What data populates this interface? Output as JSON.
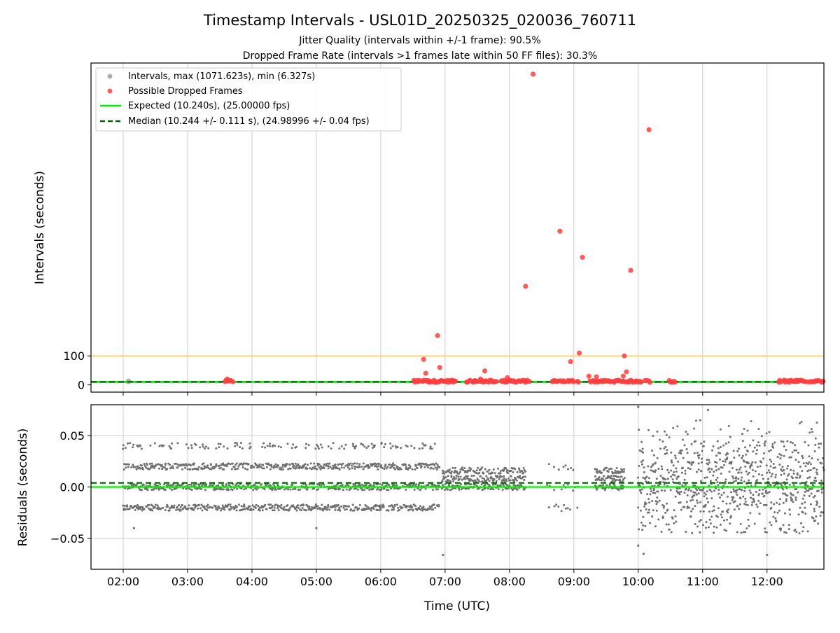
{
  "figure": {
    "title": "Timestamp Intervals - USL01D_20250325_020036_760711",
    "subtitle_1": "Jitter Quality (intervals within +/-1 frame): 90.5%",
    "subtitle_2": "Dropped Frame Rate (intervals >1 frames late within 50 FF files): 30.3%",
    "xlabel": "Time (UTC)"
  },
  "colors": {
    "intervals": "#999999",
    "dropped": "#ff4040",
    "expected": "#00ee00",
    "median": "#006400",
    "threshold": "#ffc04d",
    "residual_points": "#707070",
    "grid": "#cccccc"
  },
  "chart_data": [
    {
      "type": "scatter",
      "panel": "top",
      "ylabel": "Intervals (seconds)",
      "x_range": [
        "01:30",
        "12:53"
      ],
      "x_ticks": [
        "02:00",
        "03:00",
        "04:00",
        "05:00",
        "06:00",
        "07:00",
        "08:00",
        "09:00",
        "10:00",
        "11:00",
        "12:00"
      ],
      "ylim": [
        -25,
        1110
      ],
      "y_ticks": [
        0,
        100
      ],
      "grid": "vertical",
      "legend_position": "top-left",
      "legend": [
        {
          "label": "Intervals, max (1071.623s), min (6.327s)",
          "kind": "intervals"
        },
        {
          "label": "Possible Dropped Frames",
          "kind": "dropped"
        },
        {
          "label": "Expected (10.240s), (25.00000 fps)",
          "kind": "expected"
        },
        {
          "label": "Median (10.244 +/- 0.111 s), (24.98996 +/- 0.04 fps)",
          "kind": "median"
        }
      ],
      "expected_line": 10.24,
      "median_line": 10.244,
      "threshold_line": 100,
      "intervals_band": {
        "from": "01:30",
        "to": "12:53",
        "min": 6.327,
        "max": 14
      },
      "dropped_frames": [
        {
          "t": "03:37",
          "y": 20
        },
        {
          "t": "06:40",
          "y": 88
        },
        {
          "t": "06:55",
          "y": 60
        },
        {
          "t": "06:53",
          "y": 170
        },
        {
          "t": "06:42",
          "y": 40
        },
        {
          "t": "07:33",
          "y": 20
        },
        {
          "t": "07:37",
          "y": 48
        },
        {
          "t": "07:58",
          "y": 25
        },
        {
          "t": "08:15",
          "y": 340
        },
        {
          "t": "08:22",
          "y": 1071.623
        },
        {
          "t": "08:47",
          "y": 530
        },
        {
          "t": "08:57",
          "y": 80
        },
        {
          "t": "09:05",
          "y": 110
        },
        {
          "t": "09:08",
          "y": 440
        },
        {
          "t": "09:14",
          "y": 30
        },
        {
          "t": "09:21",
          "y": 28
        },
        {
          "t": "09:47",
          "y": 100
        },
        {
          "t": "09:49",
          "y": 45
        },
        {
          "t": "09:46",
          "y": 30
        },
        {
          "t": "09:53",
          "y": 395
        },
        {
          "t": "10:10",
          "y": 880
        }
      ],
      "dropped_clusters": [
        {
          "from": "03:35",
          "to": "03:43"
        },
        {
          "from": "06:30",
          "to": "07:10"
        },
        {
          "from": "07:20",
          "to": "08:20"
        },
        {
          "from": "08:40",
          "to": "09:05"
        },
        {
          "from": "09:15",
          "to": "10:12"
        },
        {
          "from": "10:28",
          "to": "10:35"
        },
        {
          "from": "12:10",
          "to": "12:53"
        }
      ]
    },
    {
      "type": "scatter",
      "panel": "bottom",
      "ylabel": "Residuals (seconds)",
      "x_range": [
        "01:30",
        "12:53"
      ],
      "x_ticks": [
        "02:00",
        "03:00",
        "04:00",
        "05:00",
        "06:00",
        "07:00",
        "08:00",
        "09:00",
        "10:00",
        "11:00",
        "12:00"
      ],
      "ylim": [
        -0.08,
        0.08
      ],
      "y_ticks": [
        0.05,
        0.0,
        -0.05
      ],
      "y_tick_labels": [
        "0.05",
        "0.00",
        "−0.05"
      ],
      "grid": "both",
      "expected_line": 0.0,
      "median_line": 0.004,
      "residual_segments": [
        {
          "from": "02:00",
          "to": "06:55",
          "levels": [
            -0.02,
            0.0,
            0.02,
            0.04
          ],
          "spread": 0.003
        },
        {
          "from": "06:57",
          "to": "08:15",
          "levels": [
            0.0,
            0.008,
            0.016
          ],
          "spread": 0.003
        },
        {
          "from": "09:20",
          "to": "09:47",
          "levels": [
            0.0,
            0.008,
            0.016
          ],
          "spread": 0.003
        },
        {
          "from": "08:35",
          "to": "09:05",
          "levels": [
            -0.02,
            0.0,
            0.02
          ],
          "spread": 0.004,
          "sparse": true
        },
        {
          "from": "10:00",
          "to": "12:53",
          "levels": [
            -0.02,
            0.0,
            0.02,
            0.04
          ],
          "spread": 0.015
        }
      ]
    }
  ]
}
